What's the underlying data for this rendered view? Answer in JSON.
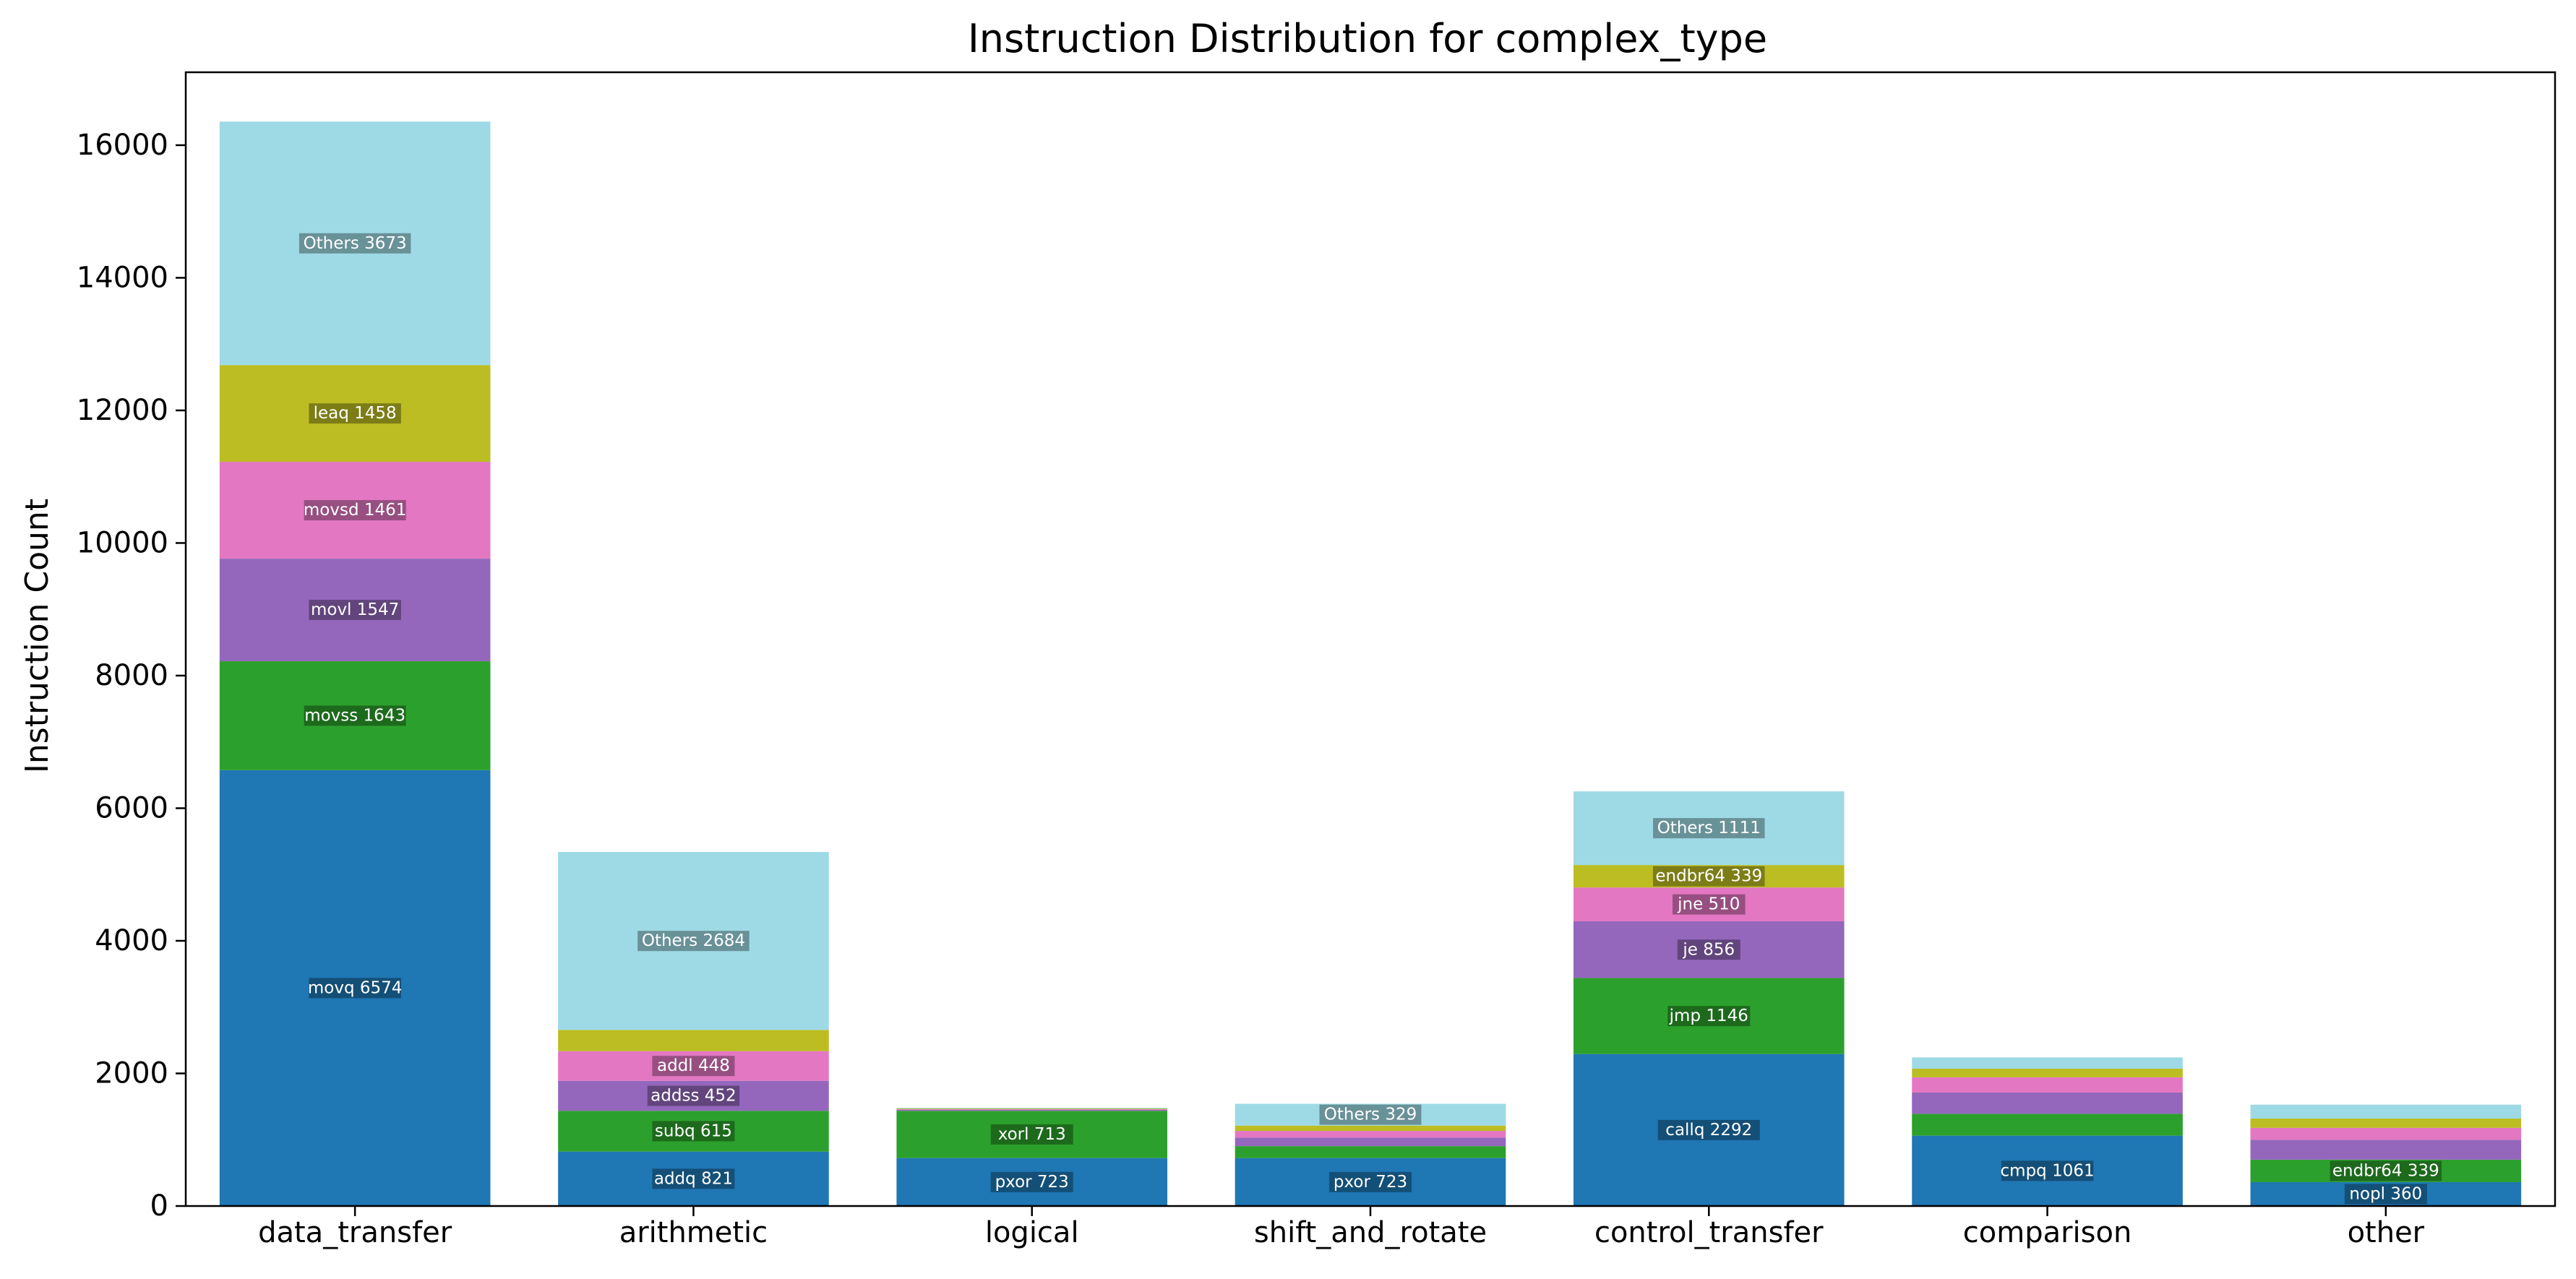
{
  "chart_data": {
    "type": "bar",
    "stacked": true,
    "title": "Instruction Distribution for complex_type",
    "xlabel": "",
    "ylabel": "Instruction Count",
    "ylim": [
      0,
      17100
    ],
    "yticks": [
      0,
      2000,
      4000,
      6000,
      8000,
      10000,
      12000,
      14000,
      16000
    ],
    "grid": false,
    "legend": "none",
    "colors": [
      "#1f77b4",
      "#2ca02c",
      "#9467bd",
      "#e377c2",
      "#bcbd22",
      "#9edae5"
    ],
    "categories": [
      "data_transfer",
      "arithmetic",
      "logical",
      "shift_and_rotate",
      "control_transfer",
      "comparison",
      "other"
    ],
    "bars": [
      {
        "category": "data_transfer",
        "segments": [
          {
            "label": "movq 6574",
            "value": 6574
          },
          {
            "label": "movss 1643",
            "value": 1643
          },
          {
            "label": "movl 1547",
            "value": 1547
          },
          {
            "label": "movsd 1461",
            "value": 1461
          },
          {
            "label": "leaq 1458",
            "value": 1458
          },
          {
            "label": "Others 3673",
            "value": 3673
          }
        ]
      },
      {
        "category": "arithmetic",
        "segments": [
          {
            "label": "addq 821",
            "value": 821
          },
          {
            "label": "subq 615",
            "value": 615
          },
          {
            "label": "addss 452",
            "value": 452
          },
          {
            "label": "addl 448",
            "value": 448
          },
          {
            "label": "",
            "value": 320
          },
          {
            "label": "Others 2684",
            "value": 2684
          }
        ]
      },
      {
        "category": "logical",
        "segments": [
          {
            "label": "pxor 723",
            "value": 723
          },
          {
            "label": "xorl 713",
            "value": 713
          },
          {
            "label": "",
            "value": 15
          },
          {
            "label": "",
            "value": 10
          },
          {
            "label": "",
            "value": 10
          },
          {
            "label": "",
            "value": 10
          }
        ]
      },
      {
        "category": "shift_and_rotate",
        "segments": [
          {
            "label": "pxor 723",
            "value": 723
          },
          {
            "label": "",
            "value": 180
          },
          {
            "label": "",
            "value": 130
          },
          {
            "label": "",
            "value": 100
          },
          {
            "label": "",
            "value": 80
          },
          {
            "label": "Others 329",
            "value": 329
          }
        ]
      },
      {
        "category": "control_transfer",
        "segments": [
          {
            "label": "callq 2292",
            "value": 2292
          },
          {
            "label": "jmp 1146",
            "value": 1146
          },
          {
            "label": "je 856",
            "value": 856
          },
          {
            "label": "jne 510",
            "value": 510
          },
          {
            "label": "endbr64 339",
            "value": 339
          },
          {
            "label": "Others 1111",
            "value": 1111
          }
        ]
      },
      {
        "category": "comparison",
        "segments": [
          {
            "label": "cmpq 1061",
            "value": 1061
          },
          {
            "label": "",
            "value": 330
          },
          {
            "label": "",
            "value": 320
          },
          {
            "label": "",
            "value": 230
          },
          {
            "label": "",
            "value": 130
          },
          {
            "label": "",
            "value": 170
          }
        ]
      },
      {
        "category": "other",
        "segments": [
          {
            "label": "nopl 360",
            "value": 360
          },
          {
            "label": "endbr64 339",
            "value": 339
          },
          {
            "label": "",
            "value": 300
          },
          {
            "label": "",
            "value": 180
          },
          {
            "label": "",
            "value": 140
          },
          {
            "label": "",
            "value": 210
          }
        ]
      }
    ]
  }
}
